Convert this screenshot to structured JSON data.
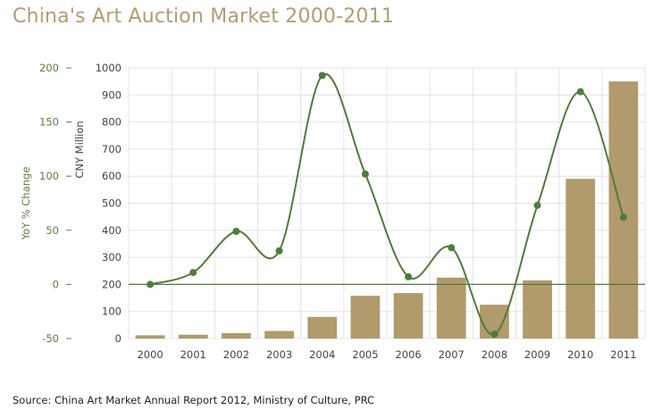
{
  "title": "China's Art Auction Market 2000-2011",
  "source": "Source: China Art Market Annual Report 2012, Ministry of Culture, PRC",
  "colors": {
    "title": "#b19d73",
    "bar": "#b19a6c",
    "line": "#4f7c3a",
    "left_axis": "#5a7f3e",
    "grid": "#e4e4e4"
  },
  "chart_data": {
    "type": "bar",
    "categories": [
      "2000",
      "2001",
      "2002",
      "2003",
      "2004",
      "2005",
      "2006",
      "2007",
      "2008",
      "2009",
      "2010",
      "2011"
    ],
    "series": [
      {
        "type": "bar",
        "axis": "right",
        "values": [
          12,
          14,
          20,
          28,
          80,
          158,
          168,
          225,
          125,
          215,
          590,
          950
        ]
      },
      {
        "type": "line",
        "axis": "left",
        "smooth": true,
        "values": [
          0,
          11,
          49,
          31,
          193,
          102,
          7,
          34,
          -46,
          73,
          178,
          62
        ]
      }
    ],
    "ylabel_left": "YoY % Change",
    "ylim_left": [
      -50,
      200
    ],
    "yticks_left": [
      -50,
      0,
      50,
      100,
      150,
      200
    ],
    "ylabel_right": "CNY Million",
    "ylim_right": [
      0,
      1000
    ],
    "yticks_right": [
      0,
      100,
      200,
      300,
      400,
      500,
      600,
      700,
      800,
      900,
      1000
    ],
    "grid": true,
    "zero_line": true
  }
}
